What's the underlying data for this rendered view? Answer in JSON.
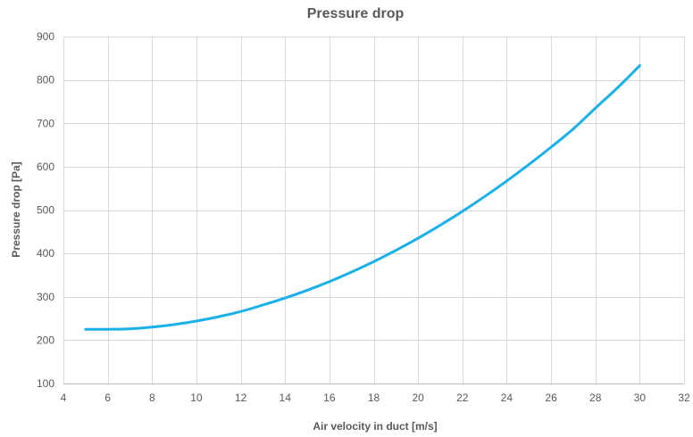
{
  "chart_data": {
    "type": "scatter",
    "title": "Pressure drop",
    "xlabel": "Air velocity in duct [m/s]",
    "ylabel": "Pressure drop [Pa]",
    "xlim": [
      4,
      32
    ],
    "ylim": [
      100,
      900
    ],
    "x_ticks": [
      4,
      6,
      8,
      10,
      12,
      14,
      16,
      18,
      20,
      22,
      24,
      26,
      28,
      30,
      32
    ],
    "y_ticks": [
      100,
      200,
      300,
      400,
      500,
      600,
      700,
      800,
      900
    ],
    "grid": true,
    "legend": "none",
    "series": [
      {
        "color": "#1ab0e8",
        "style": "smooth-line",
        "x": [
          5,
          6,
          7,
          8,
          9,
          10,
          11,
          12,
          13,
          14,
          15,
          16,
          17,
          18,
          19,
          20,
          21,
          22,
          23,
          24,
          25,
          26,
          27,
          28,
          29,
          30
        ],
        "y": [
          225,
          225,
          226,
          230,
          236,
          244,
          254,
          266,
          281,
          297,
          315,
          335,
          357,
          381,
          407,
          435,
          465,
          497,
          531,
          567,
          605,
          645,
          687,
          735,
          782,
          833
        ]
      }
    ]
  }
}
